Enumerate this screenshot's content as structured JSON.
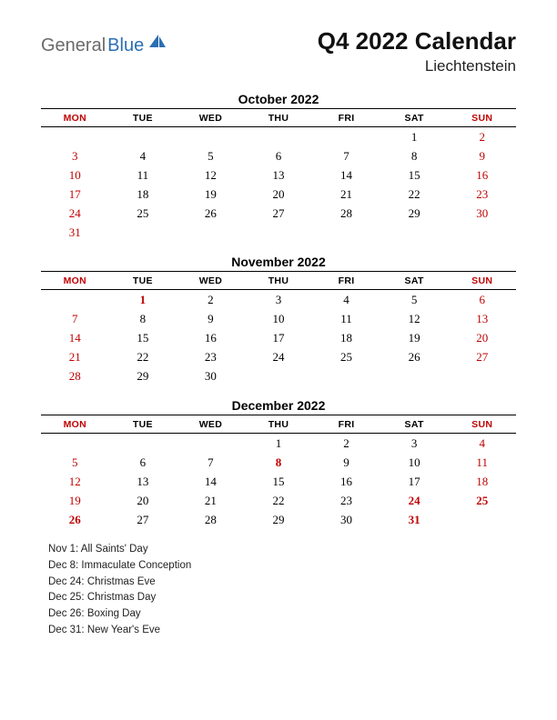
{
  "logo": {
    "general": "General",
    "blue": "Blue",
    "sail_color": "#2b6fb3"
  },
  "title": "Q4 2022 Calendar",
  "subtitle": "Liechtenstein",
  "day_headers": [
    "MON",
    "TUE",
    "WED",
    "THU",
    "FRI",
    "SAT",
    "SUN"
  ],
  "red_header_cols": [
    0,
    6
  ],
  "colors": {
    "red": "#c00000",
    "black": "#000000",
    "bg": "#ffffff"
  },
  "months": [
    {
      "title": "October 2022",
      "weeks": [
        [
          null,
          null,
          null,
          null,
          null,
          {
            "d": 1
          },
          {
            "d": 2,
            "s": "red"
          }
        ],
        [
          {
            "d": 3,
            "s": "red"
          },
          {
            "d": 4
          },
          {
            "d": 5
          },
          {
            "d": 6
          },
          {
            "d": 7
          },
          {
            "d": 8
          },
          {
            "d": 9,
            "s": "red"
          }
        ],
        [
          {
            "d": 10,
            "s": "red"
          },
          {
            "d": 11
          },
          {
            "d": 12
          },
          {
            "d": 13
          },
          {
            "d": 14
          },
          {
            "d": 15
          },
          {
            "d": 16,
            "s": "red"
          }
        ],
        [
          {
            "d": 17,
            "s": "red"
          },
          {
            "d": 18
          },
          {
            "d": 19
          },
          {
            "d": 20
          },
          {
            "d": 21
          },
          {
            "d": 22
          },
          {
            "d": 23,
            "s": "red"
          }
        ],
        [
          {
            "d": 24,
            "s": "red"
          },
          {
            "d": 25
          },
          {
            "d": 26
          },
          {
            "d": 27
          },
          {
            "d": 28
          },
          {
            "d": 29
          },
          {
            "d": 30,
            "s": "red"
          }
        ],
        [
          {
            "d": 31,
            "s": "red"
          },
          null,
          null,
          null,
          null,
          null,
          null
        ]
      ]
    },
    {
      "title": "November 2022",
      "weeks": [
        [
          null,
          {
            "d": 1,
            "s": "redbold"
          },
          {
            "d": 2
          },
          {
            "d": 3
          },
          {
            "d": 4
          },
          {
            "d": 5
          },
          {
            "d": 6,
            "s": "red"
          }
        ],
        [
          {
            "d": 7,
            "s": "red"
          },
          {
            "d": 8
          },
          {
            "d": 9
          },
          {
            "d": 10
          },
          {
            "d": 11
          },
          {
            "d": 12
          },
          {
            "d": 13,
            "s": "red"
          }
        ],
        [
          {
            "d": 14,
            "s": "red"
          },
          {
            "d": 15
          },
          {
            "d": 16
          },
          {
            "d": 17
          },
          {
            "d": 18
          },
          {
            "d": 19
          },
          {
            "d": 20,
            "s": "red"
          }
        ],
        [
          {
            "d": 21,
            "s": "red"
          },
          {
            "d": 22
          },
          {
            "d": 23
          },
          {
            "d": 24
          },
          {
            "d": 25
          },
          {
            "d": 26
          },
          {
            "d": 27,
            "s": "red"
          }
        ],
        [
          {
            "d": 28,
            "s": "red"
          },
          {
            "d": 29
          },
          {
            "d": 30
          },
          null,
          null,
          null,
          null
        ]
      ]
    },
    {
      "title": "December 2022",
      "weeks": [
        [
          null,
          null,
          null,
          {
            "d": 1
          },
          {
            "d": 2
          },
          {
            "d": 3
          },
          {
            "d": 4,
            "s": "red"
          }
        ],
        [
          {
            "d": 5,
            "s": "red"
          },
          {
            "d": 6
          },
          {
            "d": 7
          },
          {
            "d": 8,
            "s": "redbold"
          },
          {
            "d": 9
          },
          {
            "d": 10
          },
          {
            "d": 11,
            "s": "red"
          }
        ],
        [
          {
            "d": 12,
            "s": "red"
          },
          {
            "d": 13
          },
          {
            "d": 14
          },
          {
            "d": 15
          },
          {
            "d": 16
          },
          {
            "d": 17
          },
          {
            "d": 18,
            "s": "red"
          }
        ],
        [
          {
            "d": 19,
            "s": "red"
          },
          {
            "d": 20
          },
          {
            "d": 21
          },
          {
            "d": 22
          },
          {
            "d": 23
          },
          {
            "d": 24,
            "s": "redbold"
          },
          {
            "d": 25,
            "s": "redbold"
          }
        ],
        [
          {
            "d": 26,
            "s": "redbold"
          },
          {
            "d": 27
          },
          {
            "d": 28
          },
          {
            "d": 29
          },
          {
            "d": 30
          },
          {
            "d": 31,
            "s": "redbold"
          },
          null
        ]
      ]
    }
  ],
  "holidays": [
    "Nov 1: All Saints' Day",
    "Dec 8: Immaculate Conception",
    "Dec 24: Christmas Eve",
    "Dec 25: Christmas Day",
    "Dec 26: Boxing Day",
    "Dec 31: New Year's Eve"
  ]
}
